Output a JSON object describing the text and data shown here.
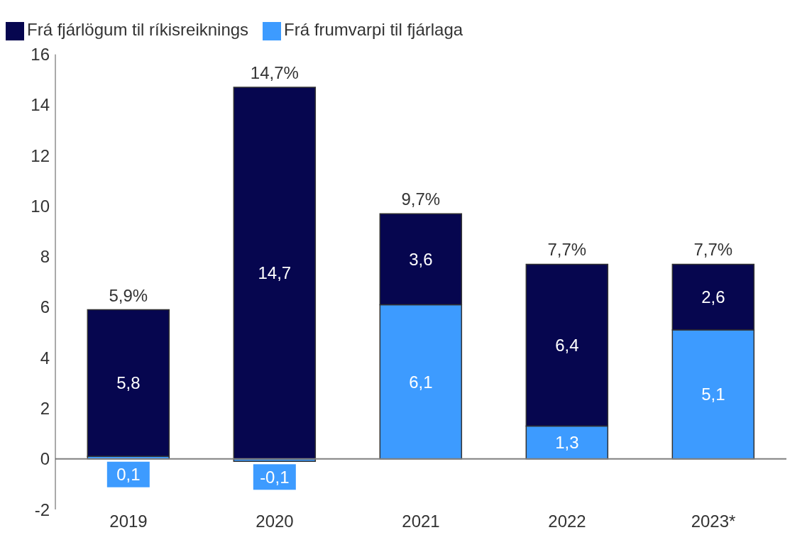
{
  "chart_data": {
    "type": "bar",
    "stacked": true,
    "categories": [
      "2019",
      "2020",
      "2021",
      "2022",
      "2023*"
    ],
    "series": [
      {
        "name": "Frá frumvarpi til fjárlaga",
        "color": "#3d9bff",
        "values": [
          0.1,
          -0.1,
          6.1,
          1.3,
          5.1
        ],
        "value_labels": [
          "0,1",
          "-0,1",
          "6,1",
          "1,3",
          "5,1"
        ]
      },
      {
        "name": "Frá fjárlögum til ríkisreiknings",
        "color": "#06064f",
        "values": [
          5.8,
          14.7,
          3.6,
          6.4,
          2.6
        ],
        "value_labels": [
          "5,8",
          "14,7",
          "3,6",
          "6,4",
          "2,6"
        ]
      }
    ],
    "totals": [
      "5,9%",
      "14,7%",
      "9,7%",
      "7,7%",
      "7,7%"
    ],
    "ylim": [
      -2,
      16
    ],
    "yticks": [
      -2,
      0,
      2,
      4,
      6,
      8,
      10,
      12,
      14,
      16
    ],
    "ref_lines": [
      {
        "axis": "y",
        "value": 0,
        "color": "#808080"
      }
    ],
    "grid": false,
    "legend": "top left"
  }
}
